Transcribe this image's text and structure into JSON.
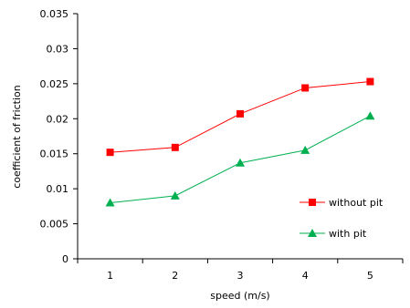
{
  "chart_data": {
    "type": "line",
    "title": "",
    "xlabel": "speed (m/s)",
    "ylabel": "coefficient of friction",
    "categories": [
      1,
      2,
      3,
      4,
      5
    ],
    "x_tick_labels": [
      "1",
      "2",
      "3",
      "4",
      "5"
    ],
    "ylim": [
      0,
      0.035
    ],
    "y_ticks": [
      0,
      0.005,
      0.01,
      0.015,
      0.02,
      0.025,
      0.03,
      0.035
    ],
    "y_tick_labels": [
      "0",
      "0.005",
      "0.01",
      "0.015",
      "0.02",
      "0.025",
      "0.03",
      "0.035"
    ],
    "grid": false,
    "legend_position": "right",
    "series": [
      {
        "name": "without pit",
        "values": [
          0.0152,
          0.0159,
          0.0207,
          0.0244,
          0.0253
        ],
        "color": "#ff0000",
        "marker": "square"
      },
      {
        "name": "with pit",
        "values": [
          0.008,
          0.009,
          0.0137,
          0.0155,
          0.0204
        ],
        "color": "#00b050",
        "marker": "triangle"
      }
    ]
  }
}
